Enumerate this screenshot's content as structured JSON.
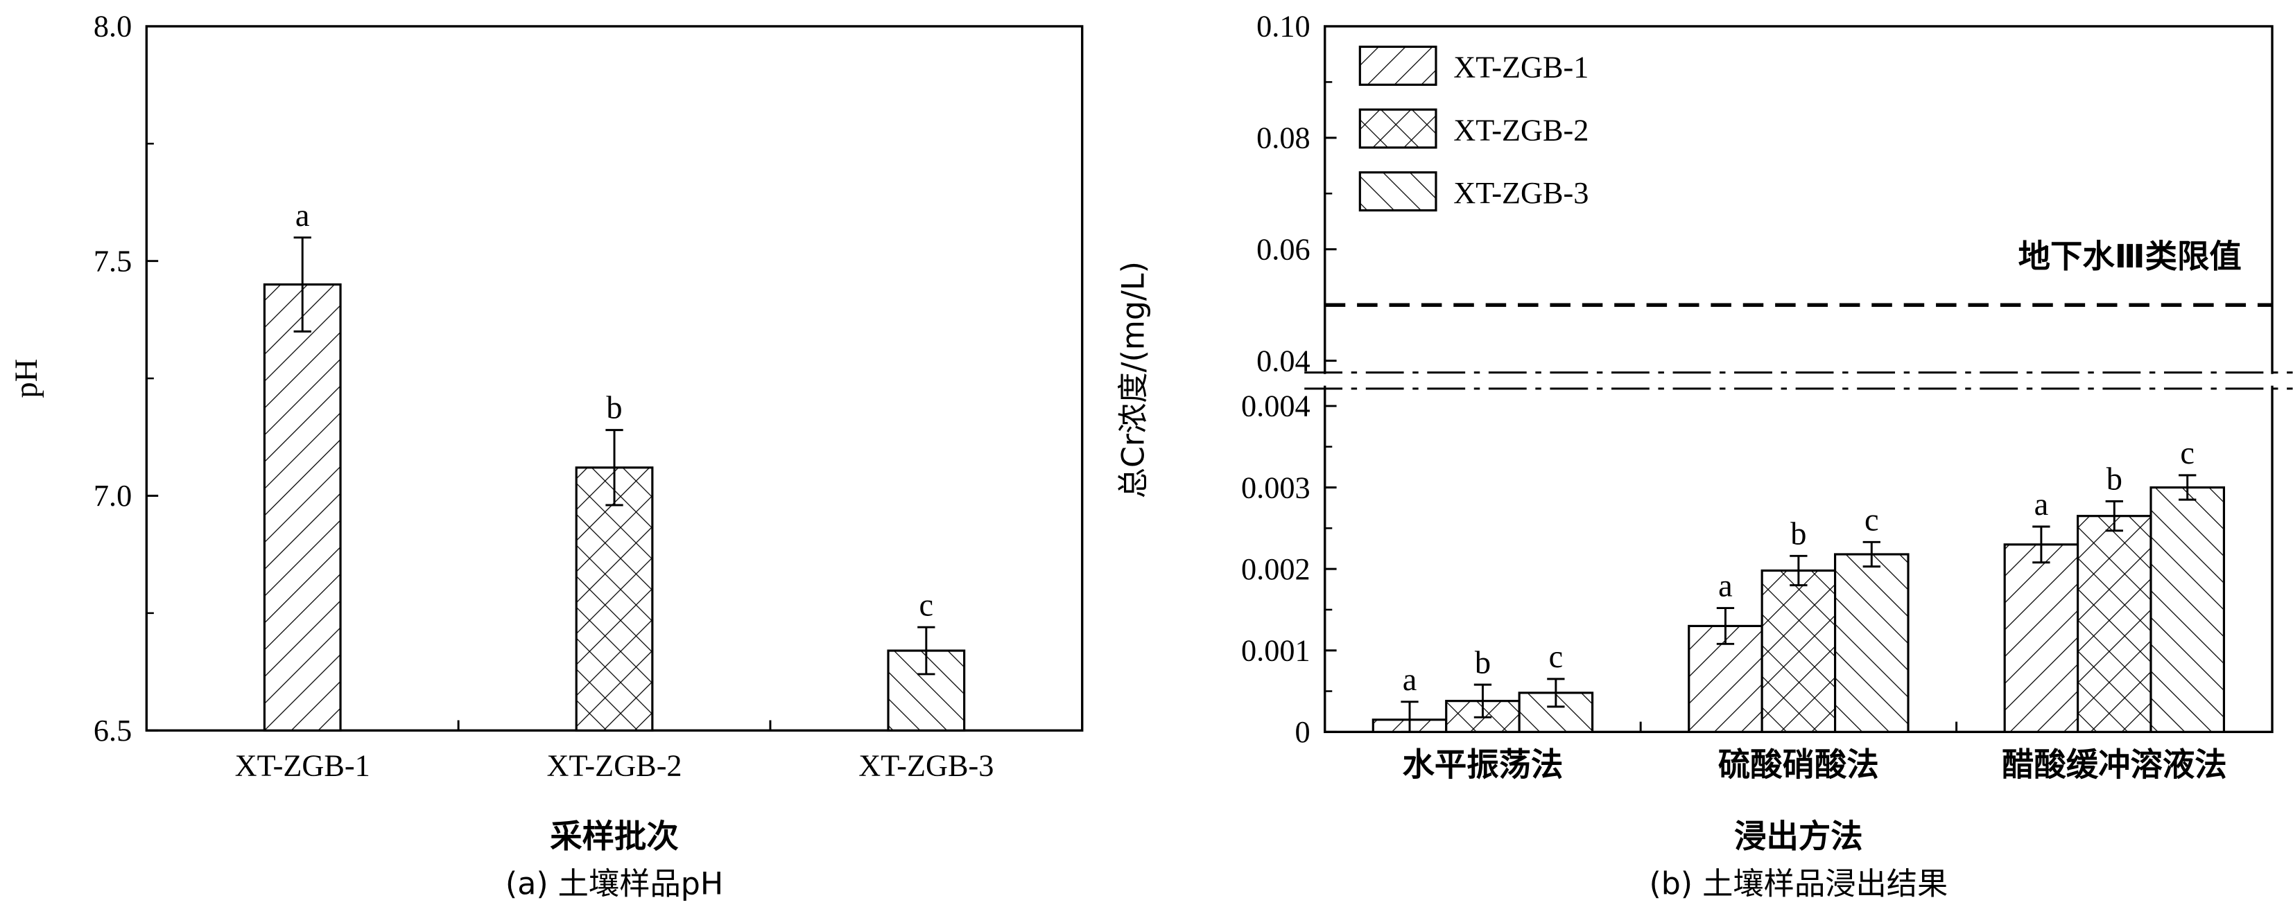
{
  "chart_data": [
    {
      "type": "bar",
      "caption": "(a)  土壤样品pH",
      "xlabel": "采样批次",
      "ylabel": "pH",
      "ylim": [
        6.5,
        8.0
      ],
      "yticks": [
        "6.5",
        "7.0",
        "7.5",
        "8.0"
      ],
      "categories": [
        "XT-ZGB-1",
        "XT-ZGB-2",
        "XT-ZGB-3"
      ],
      "values": [
        7.45,
        7.06,
        6.67
      ],
      "errors": [
        0.1,
        0.08,
        0.05
      ],
      "sig_labels": [
        "a",
        "b",
        "c"
      ],
      "patterns": [
        "diag",
        "cross",
        "back"
      ]
    },
    {
      "type": "bar",
      "caption": "(b)  土壤样品浸出结果",
      "xlabel": "浸出方法",
      "ylabel": "总Cr浓度/(mg/L)",
      "broken_axis": true,
      "ylim_lower": [
        0,
        0.0045
      ],
      "ylim_upper": [
        0.035,
        0.1
      ],
      "yticks_lower": [
        "0",
        "0.001",
        "0.002",
        "0.003",
        "0.004"
      ],
      "yticks_upper": [
        "0.04",
        "0.06",
        "0.08",
        "0.10"
      ],
      "categories": [
        "水平振荡法",
        "硫酸硝酸法",
        "醋酸缓冲溶液法"
      ],
      "series": [
        {
          "name": "XT-ZGB-1",
          "pattern": "diag",
          "values": [
            0.00015,
            0.0013,
            0.0023
          ],
          "errors": [
            0.00022,
            0.00022,
            0.00022
          ],
          "sig_labels": [
            "a",
            "a",
            "a"
          ]
        },
        {
          "name": "XT-ZGB-2",
          "pattern": "cross",
          "values": [
            0.00038,
            0.00198,
            0.00265
          ],
          "errors": [
            0.0002,
            0.00018,
            0.00018
          ],
          "sig_labels": [
            "b",
            "b",
            "b"
          ]
        },
        {
          "name": "XT-ZGB-3",
          "pattern": "back",
          "values": [
            0.00048,
            0.00218,
            0.003
          ],
          "errors": [
            0.00017,
            0.00015,
            0.00015
          ],
          "sig_labels": [
            "c",
            "c",
            "c"
          ]
        }
      ],
      "reference_line": {
        "value": 0.05,
        "label": "地下水Ⅲ类限值"
      },
      "legend": "top-left"
    }
  ]
}
